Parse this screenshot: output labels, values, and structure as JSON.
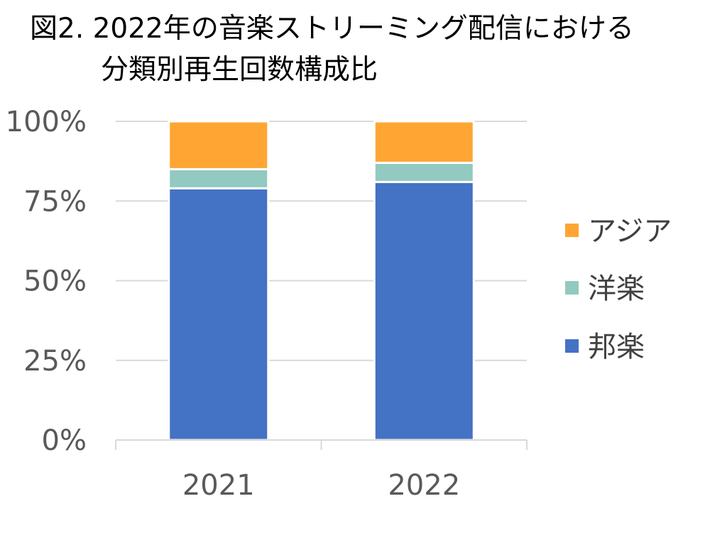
{
  "title": {
    "line1": "図2. 2022年の音楽ストリーミング配信における",
    "line2": "分類別再生回数構成比"
  },
  "chart_data": {
    "type": "bar",
    "stacked": true,
    "percent": true,
    "categories": [
      "2021",
      "2022"
    ],
    "series": [
      {
        "name": "邦楽",
        "values": [
          79,
          81
        ],
        "color": "#4472C4"
      },
      {
        "name": "洋楽",
        "values": [
          6,
          6
        ],
        "color": "#92C9C0"
      },
      {
        "name": "アジア",
        "values": [
          15,
          13
        ],
        "color": "#FFA533"
      }
    ],
    "yticks": [
      "0%",
      "25%",
      "50%",
      "75%",
      "100%"
    ],
    "ylim": [
      0,
      100
    ],
    "grid": true,
    "legend_position": "right",
    "legend_order": [
      "アジア",
      "洋楽",
      "邦楽"
    ]
  }
}
